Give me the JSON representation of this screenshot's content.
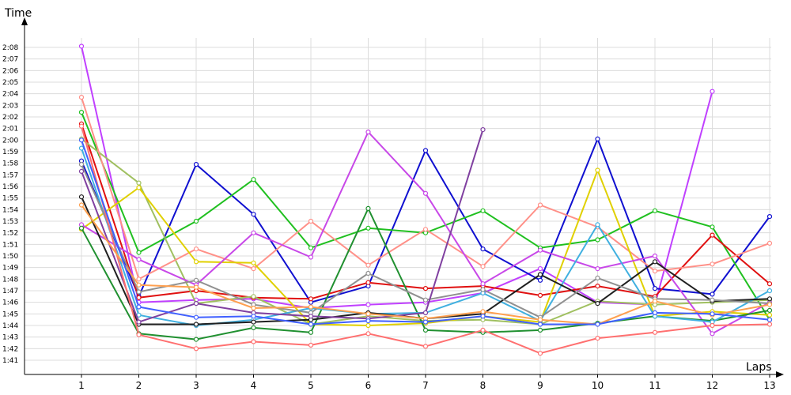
{
  "chart_data": {
    "type": "line",
    "title": "",
    "xlabel": "Laps",
    "ylabel": "Time",
    "x": [
      "1",
      "2",
      "3",
      "4",
      "5",
      "6",
      "7",
      "8",
      "9",
      "10",
      "11",
      "12",
      "13"
    ],
    "y_ticks": [
      "1:41",
      "1:42",
      "1:43",
      "1:44",
      "1:45",
      "1:46",
      "1:47",
      "1:48",
      "1:49",
      "1:50",
      "1:51",
      "1:52",
      "1:53",
      "1:54",
      "1:55",
      "1:56",
      "1:57",
      "1:58",
      "1:59",
      "2:00",
      "2:01",
      "2:02",
      "2:03",
      "2:04",
      "2:05",
      "2:06",
      "2:07",
      "2:08"
    ],
    "ylim_seconds": [
      100,
      129
    ],
    "grid": true,
    "legend": "none",
    "series": [
      {
        "color": "#c040ff",
        "values": [
          128.1,
          106.0,
          106.2,
          106.3,
          105.5,
          105.8,
          106.0,
          106.8,
          108.9,
          106.0,
          105.8,
          124.2,
          null
        ]
      },
      {
        "color": "#1010d0",
        "values": [
          118.2,
          106.5,
          117.9,
          113.6,
          106.0,
          107.4,
          119.1,
          110.6,
          107.9,
          120.1,
          107.2,
          106.7,
          113.4
        ]
      },
      {
        "color": "#20c020",
        "values": [
          122.4,
          110.3,
          113.0,
          116.6,
          110.7,
          112.4,
          112.0,
          113.9,
          110.7,
          111.4,
          113.9,
          112.5,
          104.5
        ]
      },
      {
        "color": "#e01010",
        "values": [
          121.4,
          106.4,
          107.0,
          106.4,
          106.3,
          107.7,
          107.2,
          107.4,
          106.6,
          107.4,
          106.5,
          111.8,
          107.6
        ]
      },
      {
        "color": "#a0c060",
        "values": [
          120.1,
          116.3,
          105.9,
          106.5,
          104.1,
          104.8,
          104.4,
          104.5,
          104.1,
          106.1,
          105.8,
          106.0,
          106.2
        ]
      },
      {
        "color": "#ff9088",
        "values": [
          123.7,
          108.0,
          110.6,
          108.9,
          113.0,
          109.2,
          112.3,
          109.1,
          114.4,
          112.5,
          108.7,
          109.3,
          111.1
        ]
      },
      {
        "color": "#e0d000",
        "values": [
          112.3,
          115.9,
          109.5,
          109.4,
          104.1,
          104.0,
          104.2,
          104.8,
          104.3,
          117.4,
          104.8,
          105.2,
          104.9
        ]
      },
      {
        "color": "#c848e8",
        "values": [
          112.7,
          109.7,
          107.5,
          112.0,
          109.9,
          120.7,
          115.4,
          107.6,
          110.5,
          108.9,
          110.0,
          103.3,
          106.0
        ]
      },
      {
        "color": "#209030",
        "values": [
          112.4,
          103.3,
          102.8,
          103.8,
          103.4,
          114.1,
          103.6,
          103.4,
          103.6,
          104.2,
          104.8,
          104.4,
          105.3
        ]
      },
      {
        "color": "#40b0e0",
        "values": [
          119.3,
          104.9,
          104.0,
          104.5,
          105.5,
          105.0,
          105.1,
          106.8,
          104.4,
          112.7,
          104.8,
          104.3,
          107.0
        ]
      },
      {
        "color": "#202020",
        "values": [
          115.1,
          104.1,
          104.1,
          104.3,
          104.5,
          105.1,
          104.6,
          105.0,
          108.4,
          105.9,
          109.5,
          106.1,
          106.3
        ]
      },
      {
        "color": "#909090",
        "values": [
          117.9,
          106.9,
          107.9,
          105.8,
          105.1,
          108.5,
          106.2,
          107.1,
          104.7,
          108.1,
          106.3,
          106.2,
          105.9
        ]
      },
      {
        "color": "#8040a0",
        "values": [
          117.3,
          104.3,
          105.9,
          105.1,
          104.8,
          104.6,
          105.1,
          120.9,
          null,
          null,
          null,
          null,
          null
        ]
      },
      {
        "color": "#ff7070",
        "values": [
          121.2,
          103.2,
          102.0,
          102.6,
          102.3,
          103.3,
          102.2,
          103.6,
          101.6,
          102.9,
          103.4,
          104.0,
          104.1
        ]
      },
      {
        "color": "#ffa050",
        "values": [
          114.4,
          107.5,
          107.3,
          105.5,
          105.6,
          105.0,
          104.6,
          105.2,
          104.5,
          104.1,
          106.1,
          104.9,
          105.8
        ]
      },
      {
        "color": "#4060ff",
        "values": [
          120.0,
          105.6,
          104.7,
          104.8,
          104.1,
          104.4,
          104.3,
          104.8,
          104.1,
          104.1,
          105.1,
          105.0,
          104.5
        ]
      }
    ]
  }
}
